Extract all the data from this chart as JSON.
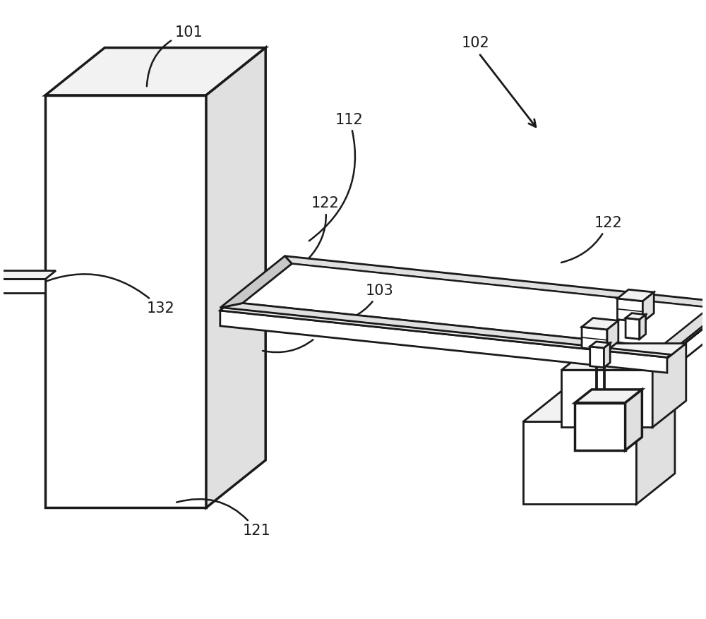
{
  "bg": "#ffffff",
  "lc": "#1a1a1a",
  "lw": 2.0,
  "tlw": 2.5,
  "fs": 15,
  "gl": "#f2f2f2",
  "gm": "#e0e0e0",
  "gd": "#c8c8c8"
}
